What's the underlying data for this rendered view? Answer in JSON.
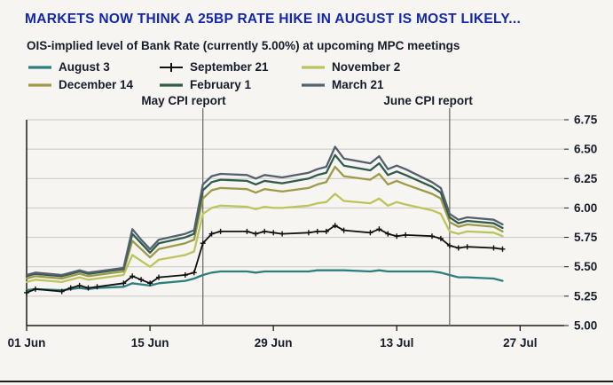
{
  "chart_data": {
    "type": "line",
    "title": "MARKETS NOW THINK A 25BP RATE HIKE IN AUGUST IS MOST LIKELY...",
    "subtitle": "OIS-implied level of Bank Rate (currently 5.00%) at upcoming MPC meetings",
    "legend_position": "top-left",
    "grid": "horizontal",
    "colors": {
      "background": "#f6f5f1",
      "title": "#1226ae",
      "text": "#171c2b",
      "grid": "#c9c8c3",
      "axis": "#1c1c1c",
      "annotation_line": "#6f6f6a"
    },
    "x_axis": {
      "domain_days": [
        0,
        61
      ],
      "tick_days": [
        0,
        14,
        28,
        42,
        56
      ],
      "tick_labels": [
        "01 Jun",
        "15 Jun",
        "29 Jun",
        "13 Jul",
        "27 Jul"
      ]
    },
    "y_axis": {
      "min": 5.0,
      "max": 6.75,
      "step": 0.25,
      "side": "right",
      "tick_labels": [
        "5.00",
        "5.25",
        "5.50",
        "5.75",
        "6.00",
        "6.25",
        "6.50",
        "6.75"
      ]
    },
    "annotations": [
      {
        "label": "May CPI report",
        "day": 20
      },
      {
        "label": "June CPI report",
        "day": 48
      }
    ],
    "days": [
      0,
      1,
      4,
      5,
      6,
      7,
      8,
      11,
      12,
      13,
      14,
      15,
      18,
      19,
      20,
      21,
      22,
      25,
      26,
      27,
      28,
      29,
      32,
      33,
      34,
      35,
      36,
      39,
      40,
      41,
      42,
      43,
      46,
      47,
      48,
      49,
      50,
      53,
      54
    ],
    "series": [
      {
        "name": "August 3",
        "color": "#2d7f7e",
        "marker": "none",
        "values": [
          5.3,
          5.31,
          5.3,
          5.31,
          5.32,
          5.31,
          5.32,
          5.33,
          5.36,
          5.35,
          5.34,
          5.36,
          5.38,
          5.4,
          5.43,
          5.45,
          5.46,
          5.46,
          5.45,
          5.46,
          5.46,
          5.46,
          5.46,
          5.47,
          5.47,
          5.47,
          5.47,
          5.46,
          5.47,
          5.46,
          5.46,
          5.46,
          5.46,
          5.45,
          5.43,
          5.41,
          5.41,
          5.4,
          5.38
        ]
      },
      {
        "name": "September 21",
        "color": "#111111",
        "marker": "plus",
        "values": [
          5.28,
          5.31,
          5.29,
          5.32,
          5.34,
          5.32,
          5.33,
          5.36,
          5.42,
          5.39,
          5.36,
          5.41,
          5.43,
          5.45,
          5.7,
          5.78,
          5.8,
          5.8,
          5.78,
          5.8,
          5.79,
          5.78,
          5.79,
          5.8,
          5.8,
          5.85,
          5.81,
          5.79,
          5.82,
          5.78,
          5.76,
          5.77,
          5.76,
          5.74,
          5.68,
          5.66,
          5.67,
          5.66,
          5.65
        ]
      },
      {
        "name": "November 2",
        "color": "#bcc45e",
        "marker": "none",
        "values": [
          5.37,
          5.39,
          5.37,
          5.39,
          5.41,
          5.39,
          5.4,
          5.43,
          5.6,
          5.55,
          5.5,
          5.56,
          5.6,
          5.63,
          5.95,
          6.0,
          6.02,
          6.01,
          5.99,
          6.01,
          6.0,
          6.0,
          6.02,
          6.04,
          6.05,
          6.12,
          6.06,
          6.04,
          6.08,
          6.02,
          6.05,
          6.03,
          5.98,
          5.95,
          5.8,
          5.78,
          5.8,
          5.79,
          5.76
        ]
      },
      {
        "name": "December 14",
        "color": "#9f9a4a",
        "marker": "none",
        "values": [
          5.4,
          5.42,
          5.4,
          5.42,
          5.44,
          5.42,
          5.43,
          5.46,
          5.72,
          5.65,
          5.58,
          5.65,
          5.7,
          5.73,
          6.08,
          6.15,
          6.17,
          6.16,
          6.13,
          6.16,
          6.15,
          6.14,
          6.17,
          6.2,
          6.22,
          6.35,
          6.27,
          6.24,
          6.29,
          6.2,
          6.23,
          6.2,
          6.12,
          6.08,
          5.88,
          5.84,
          5.86,
          5.84,
          5.8
        ]
      },
      {
        "name": "February 1",
        "color": "#2f5c4c",
        "marker": "none",
        "values": [
          5.42,
          5.44,
          5.42,
          5.44,
          5.46,
          5.44,
          5.45,
          5.48,
          5.78,
          5.7,
          5.62,
          5.7,
          5.75,
          5.78,
          6.15,
          6.22,
          6.24,
          6.23,
          6.2,
          6.23,
          6.22,
          6.21,
          6.25,
          6.28,
          6.3,
          6.45,
          6.36,
          6.32,
          6.38,
          6.28,
          6.31,
          6.28,
          6.18,
          6.13,
          5.92,
          5.87,
          5.89,
          5.87,
          5.83
        ]
      },
      {
        "name": "March 21",
        "color": "#55606e",
        "marker": "none",
        "values": [
          5.43,
          5.45,
          5.43,
          5.45,
          5.47,
          5.45,
          5.46,
          5.49,
          5.82,
          5.73,
          5.65,
          5.73,
          5.78,
          5.81,
          6.2,
          6.27,
          6.29,
          6.28,
          6.25,
          6.28,
          6.27,
          6.26,
          6.3,
          6.33,
          6.35,
          6.52,
          6.42,
          6.38,
          6.44,
          6.33,
          6.36,
          6.33,
          6.22,
          6.17,
          5.95,
          5.9,
          5.92,
          5.9,
          5.86
        ]
      }
    ]
  }
}
